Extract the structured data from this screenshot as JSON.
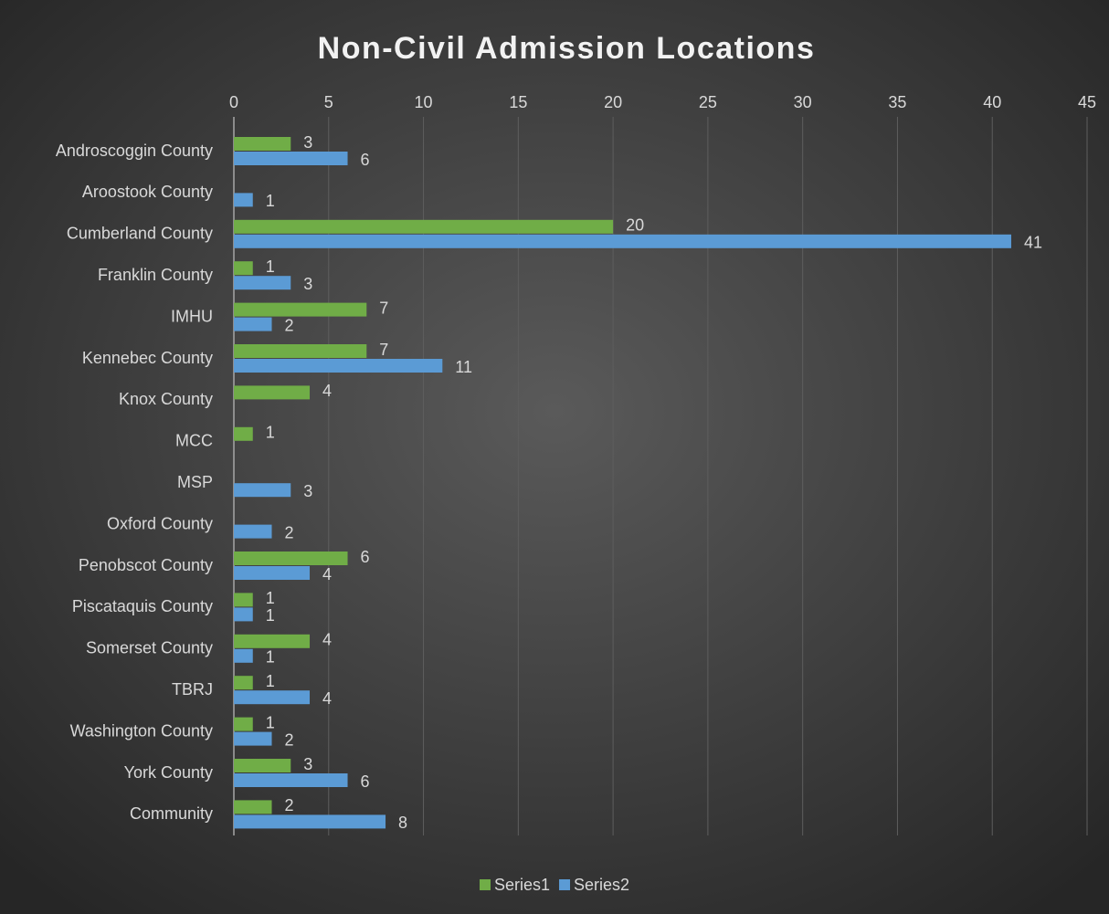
{
  "chart_data": {
    "type": "bar",
    "orientation": "horizontal",
    "title": "Non-Civil Admission Locations",
    "categories": [
      "Androscoggin County",
      "Aroostook County",
      "Cumberland County",
      "Franklin County",
      "IMHU",
      "Kennebec County",
      "Knox County",
      "MCC",
      "MSP",
      "Oxford County",
      "Penobscot County",
      "Piscataquis County",
      "Somerset County",
      "TBRJ",
      "Washington County",
      "York County",
      "Community"
    ],
    "series": [
      {
        "name": "Series1",
        "color": "#70ad47",
        "values": [
          3,
          null,
          20,
          1,
          7,
          7,
          4,
          1,
          null,
          null,
          6,
          1,
          4,
          1,
          1,
          3,
          2
        ]
      },
      {
        "name": "Series2",
        "color": "#5b9bd5",
        "values": [
          6,
          1,
          41,
          3,
          2,
          11,
          null,
          null,
          3,
          2,
          4,
          1,
          1,
          4,
          2,
          6,
          8
        ]
      }
    ],
    "xlim": [
      0,
      45
    ],
    "xticks": [
      0,
      5,
      10,
      15,
      20,
      25,
      30,
      35,
      40,
      45
    ],
    "grid": true,
    "legend": "bottom"
  }
}
